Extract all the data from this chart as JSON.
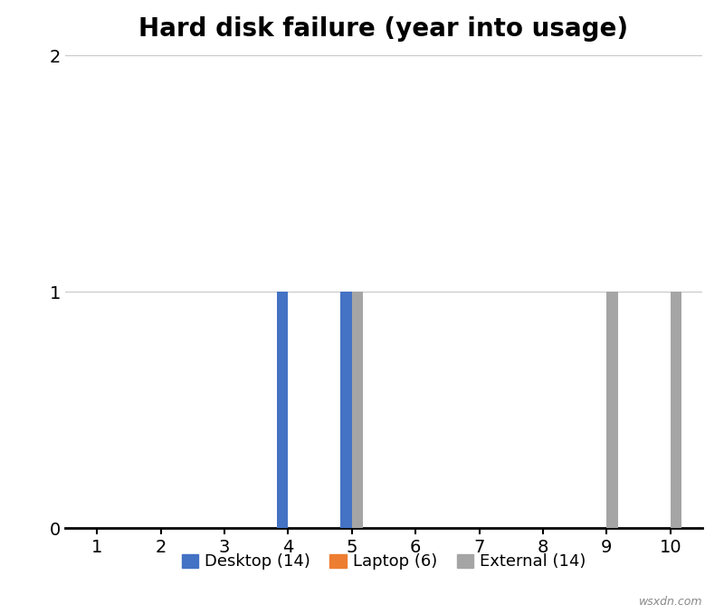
{
  "title": "Hard disk failure (year into usage)",
  "x_years": [
    1,
    2,
    3,
    4,
    5,
    6,
    7,
    8,
    9,
    10
  ],
  "desktop_values": [
    0,
    0,
    0,
    1,
    1,
    0,
    0,
    0,
    0,
    0
  ],
  "laptop_values": [
    0,
    0,
    0,
    0,
    0,
    0,
    0,
    0,
    0,
    0
  ],
  "external_values": [
    0,
    0,
    0,
    0,
    1,
    0,
    0,
    0,
    1,
    1
  ],
  "desktop_color": "#4472C4",
  "laptop_color": "#ED7D31",
  "external_color": "#A5A5A5",
  "desktop_label": "Desktop (14)",
  "laptop_label": "Laptop (6)",
  "external_label": "External (14)",
  "ylim": [
    0,
    2
  ],
  "yticks": [
    0,
    1,
    2
  ],
  "xlim": [
    0.5,
    10.5
  ],
  "xticks": [
    1,
    2,
    3,
    4,
    5,
    6,
    7,
    8,
    9,
    10
  ],
  "bar_width": 0.18,
  "background_color": "#FFFFFF",
  "grid_color": "#C8C8C8",
  "title_fontsize": 20,
  "tick_fontsize": 14,
  "legend_fontsize": 13,
  "watermark": "wsxdn.com"
}
